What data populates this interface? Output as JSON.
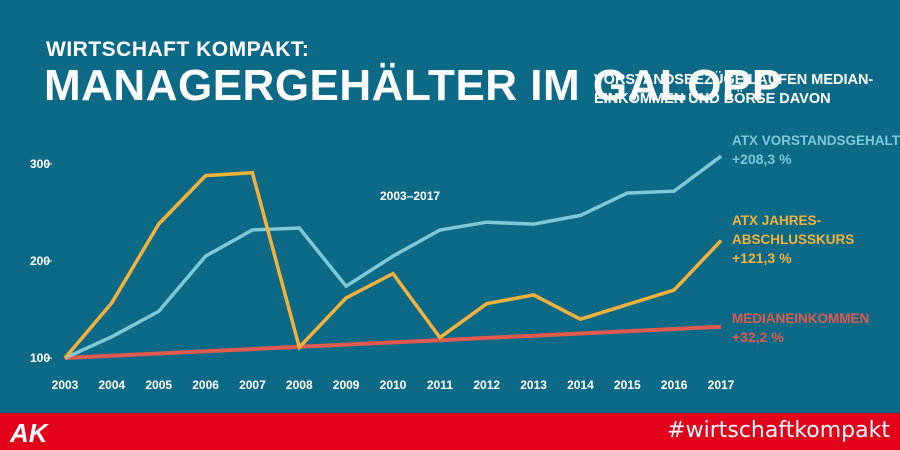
{
  "header": {
    "kicker": "WIRTSCHAFT KOMPAKT:",
    "title": "MANAGERGEHÄLTER IM GALOPP",
    "subtitle_line1": "VORSTANDSBEZÜGE LAUFEN MEDIAN-",
    "subtitle_line2": "EINKOMMEN UND BÖRSE DAVON"
  },
  "chart_data": {
    "type": "line",
    "period_label": "2003–2017",
    "x": [
      "2003",
      "2004",
      "2005",
      "2006",
      "2007",
      "2008",
      "2009",
      "2010",
      "2011",
      "2012",
      "2013",
      "2014",
      "2015",
      "2016",
      "2017"
    ],
    "yticks": [
      100,
      200,
      300
    ],
    "ylim": [
      100,
      310
    ],
    "grid": false,
    "series": [
      {
        "name_line1": "ATX VORSTANDSGEHALT",
        "name_line2": "",
        "change": "+208,3 %",
        "color": "#7ec8d9",
        "values": [
          100,
          122,
          148,
          205,
          232,
          234,
          174,
          205,
          232,
          240,
          238,
          247,
          270,
          272,
          308
        ]
      },
      {
        "name_line1": "ATX JAHRES-",
        "name_line2": "ABSCHLUSSKURS",
        "change": "+121,3 %",
        "color": "#f5b23a",
        "values": [
          100,
          157,
          238,
          288,
          291,
          111,
          162,
          187,
          121,
          156,
          165,
          140,
          155,
          170,
          221
        ]
      },
      {
        "name_line1": "MEDIANEINKOMMEN",
        "name_line2": "",
        "change": "+32,2 %",
        "color": "#e05a4e",
        "values": [
          100,
          102.3,
          104.6,
          106.9,
          109.2,
          111.5,
          113.8,
          116.1,
          118.4,
          120.7,
          123.0,
          125.3,
          127.6,
          129.9,
          132.2
        ]
      }
    ]
  },
  "footer": {
    "hashtag": "#wirtschaftkompakt",
    "logo_text": "AK"
  },
  "colors": {
    "background": "#0d6a87",
    "footer_band": "#e3001b"
  }
}
